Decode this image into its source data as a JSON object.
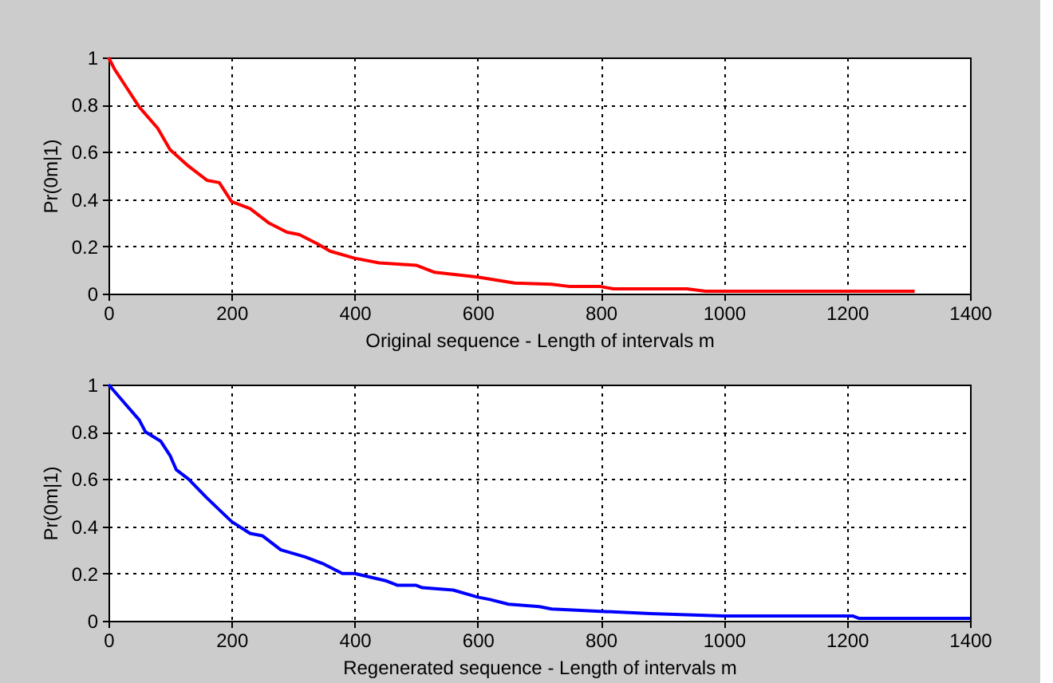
{
  "chart_data": [
    {
      "type": "line",
      "xlabel": "Original sequence - Length of intervals m",
      "ylabel": "Pr(0m|1)",
      "xlim": [
        0,
        1400
      ],
      "ylim": [
        0,
        1
      ],
      "xticks": [
        0,
        200,
        400,
        600,
        800,
        1000,
        1200,
        1400
      ],
      "yticks": [
        0,
        0.2,
        0.4,
        0.6,
        0.8,
        1
      ],
      "grid": true,
      "x": [
        0,
        10,
        30,
        50,
        80,
        100,
        130,
        160,
        180,
        200,
        230,
        260,
        290,
        310,
        340,
        360,
        400,
        440,
        500,
        530,
        600,
        660,
        720,
        750,
        800,
        820,
        940,
        970,
        1000,
        1310
      ],
      "series": [
        {
          "color": "#ff0000",
          "values": [
            1,
            0.95,
            0.87,
            0.79,
            0.7,
            0.61,
            0.54,
            0.48,
            0.47,
            0.39,
            0.36,
            0.3,
            0.26,
            0.25,
            0.21,
            0.18,
            0.15,
            0.13,
            0.12,
            0.09,
            0.07,
            0.045,
            0.04,
            0.03,
            0.03,
            0.02,
            0.02,
            0.01,
            0.01,
            0.01
          ]
        }
      ]
    },
    {
      "type": "line",
      "xlabel": "Regenerated sequence - Length of intervals m",
      "ylabel": "Pr(0m|1)",
      "xlim": [
        0,
        1400
      ],
      "ylim": [
        0,
        1
      ],
      "xticks": [
        0,
        200,
        400,
        600,
        800,
        1000,
        1200,
        1400
      ],
      "yticks": [
        0,
        0.2,
        0.4,
        0.6,
        0.8,
        1
      ],
      "grid": true,
      "x": [
        0,
        20,
        50,
        60,
        85,
        100,
        110,
        130,
        160,
        200,
        230,
        250,
        280,
        320,
        350,
        380,
        400,
        450,
        470,
        500,
        510,
        560,
        600,
        620,
        650,
        700,
        720,
        800,
        880,
        1000,
        1210,
        1220,
        1400
      ],
      "series": [
        {
          "color": "#0000ff",
          "values": [
            1,
            0.94,
            0.85,
            0.8,
            0.76,
            0.7,
            0.64,
            0.6,
            0.52,
            0.42,
            0.37,
            0.36,
            0.3,
            0.27,
            0.24,
            0.2,
            0.2,
            0.17,
            0.15,
            0.15,
            0.14,
            0.13,
            0.1,
            0.09,
            0.07,
            0.06,
            0.05,
            0.04,
            0.03,
            0.02,
            0.02,
            0.01,
            0.01
          ]
        }
      ]
    }
  ]
}
